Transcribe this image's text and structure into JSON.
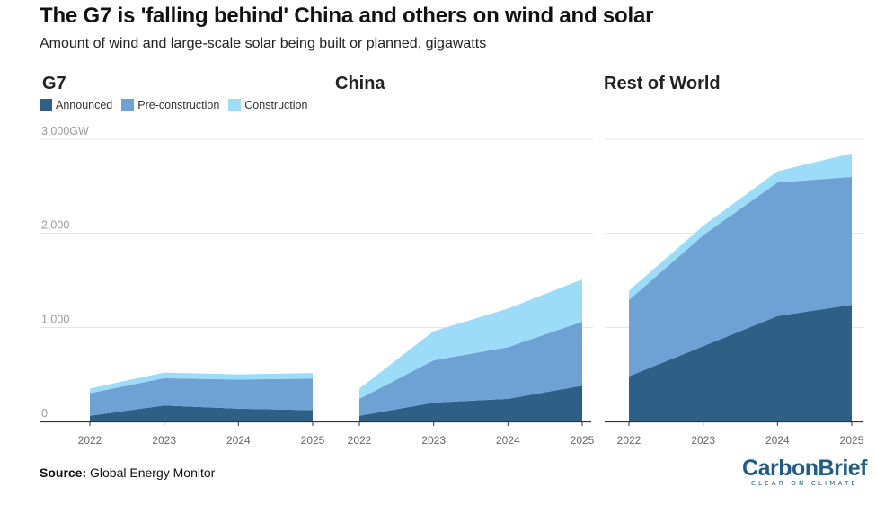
{
  "header": {
    "title": "The G7 is 'falling behind' China and others on wind and solar",
    "subtitle": "Amount of wind and large-scale solar being built or planned, gigawatts"
  },
  "footer": {
    "source_label": "Source:",
    "source_text": " Global Energy Monitor",
    "brand_name": "CarbonBrief",
    "brand_tagline": "CLEAR ON CLIMATE"
  },
  "colors": {
    "announced": "#2e5f86",
    "preconstruction": "#6fa2d4",
    "construction": "#9ddcf8",
    "grid": "#e3e3e3",
    "axis": "#333333"
  },
  "chart_data": {
    "type": "area",
    "stacked": true,
    "y_axis": {
      "min": 0,
      "max": 3000,
      "ticks": [
        0,
        1000,
        2000,
        3000
      ],
      "tick_labels": [
        "0",
        "1,000",
        "2,000",
        "3,000GW"
      ]
    },
    "categories": [
      "2022",
      "2023",
      "2024",
      "2025"
    ],
    "legend": [
      "Announced",
      "Pre-construction",
      "Construction"
    ],
    "panels": [
      {
        "title": "G7",
        "series": [
          {
            "name": "Announced",
            "values": [
              60,
              170,
              135,
              120
            ]
          },
          {
            "name": "Pre-construction",
            "values": [
              240,
              290,
              310,
              335
            ]
          },
          {
            "name": "Construction",
            "values": [
              50,
              60,
              55,
              60
            ]
          }
        ]
      },
      {
        "title": "China",
        "series": [
          {
            "name": "Announced",
            "values": [
              60,
              200,
              240,
              380
            ]
          },
          {
            "name": "Pre-construction",
            "values": [
              180,
              450,
              550,
              680
            ]
          },
          {
            "name": "Construction",
            "values": [
              110,
              310,
              410,
              450
            ]
          }
        ]
      },
      {
        "title": "Rest of World",
        "series": [
          {
            "name": "Announced",
            "values": [
              480,
              800,
              1120,
              1240
            ]
          },
          {
            "name": "Pre-construction",
            "values": [
              810,
              1180,
              1420,
              1360
            ]
          },
          {
            "name": "Construction",
            "values": [
              100,
              100,
              120,
              250
            ]
          }
        ]
      }
    ]
  }
}
